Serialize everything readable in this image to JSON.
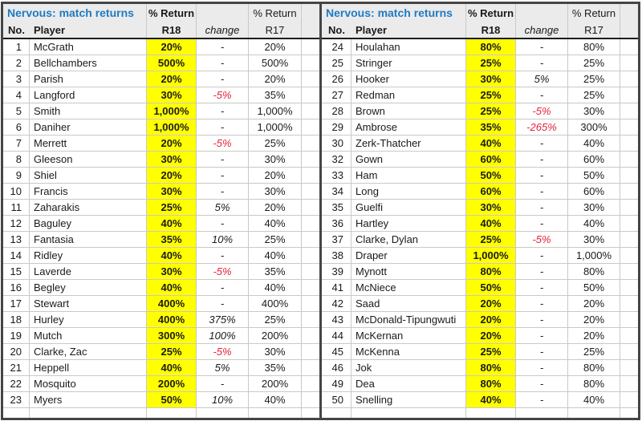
{
  "title": "Nervous: match returns",
  "colors": {
    "title_blue": "#1e7bc3",
    "highlight_yellow": "#ffff00",
    "negative_red": "#e3233c"
  },
  "header": {
    "pct_return": "% Return",
    "col_no": "No.",
    "col_player": "Player",
    "col_r18": "R18",
    "col_change": "change",
    "col_r17": "R17"
  },
  "left_rows": [
    {
      "no": "1",
      "player": "McGrath",
      "r18": "20%",
      "change": "-",
      "r17": "20%"
    },
    {
      "no": "2",
      "player": "Bellchambers",
      "r18": "500%",
      "change": "-",
      "r17": "500%"
    },
    {
      "no": "3",
      "player": "Parish",
      "r18": "20%",
      "change": "-",
      "r17": "20%"
    },
    {
      "no": "4",
      "player": "Langford",
      "r18": "30%",
      "change": "-5%",
      "r17": "35%"
    },
    {
      "no": "5",
      "player": "Smith",
      "r18": "1,000%",
      "change": "-",
      "r17": "1,000%"
    },
    {
      "no": "6",
      "player": "Daniher",
      "r18": "1,000%",
      "change": "-",
      "r17": "1,000%"
    },
    {
      "no": "7",
      "player": "Merrett",
      "r18": "20%",
      "change": "-5%",
      "r17": "25%"
    },
    {
      "no": "8",
      "player": "Gleeson",
      "r18": "30%",
      "change": "-",
      "r17": "30%"
    },
    {
      "no": "9",
      "player": "Shiel",
      "r18": "20%",
      "change": "-",
      "r17": "20%"
    },
    {
      "no": "10",
      "player": "Francis",
      "r18": "30%",
      "change": "-",
      "r17": "30%"
    },
    {
      "no": "11",
      "player": "Zaharakis",
      "r18": "25%",
      "change": "5%",
      "r17": "20%"
    },
    {
      "no": "12",
      "player": "Baguley",
      "r18": "40%",
      "change": "-",
      "r17": "40%"
    },
    {
      "no": "13",
      "player": "Fantasia",
      "r18": "35%",
      "change": "10%",
      "r17": "25%"
    },
    {
      "no": "14",
      "player": "Ridley",
      "r18": "40%",
      "change": "-",
      "r17": "40%"
    },
    {
      "no": "15",
      "player": "Laverde",
      "r18": "30%",
      "change": "-5%",
      "r17": "35%"
    },
    {
      "no": "16",
      "player": "Begley",
      "r18": "40%",
      "change": "-",
      "r17": "40%"
    },
    {
      "no": "17",
      "player": "Stewart",
      "r18": "400%",
      "change": "-",
      "r17": "400%"
    },
    {
      "no": "18",
      "player": "Hurley",
      "r18": "400%",
      "change": "375%",
      "r17": "25%"
    },
    {
      "no": "19",
      "player": "Mutch",
      "r18": "300%",
      "change": "100%",
      "r17": "200%"
    },
    {
      "no": "20",
      "player": "Clarke, Zac",
      "r18": "25%",
      "change": "-5%",
      "r17": "30%"
    },
    {
      "no": "21",
      "player": "Heppell",
      "r18": "40%",
      "change": "5%",
      "r17": "35%"
    },
    {
      "no": "22",
      "player": "Mosquito",
      "r18": "200%",
      "change": "-",
      "r17": "200%"
    },
    {
      "no": "23",
      "player": "Myers",
      "r18": "50%",
      "change": "10%",
      "r17": "40%"
    }
  ],
  "right_rows": [
    {
      "no": "24",
      "player": "Houlahan",
      "r18": "80%",
      "change": "-",
      "r17": "80%"
    },
    {
      "no": "25",
      "player": "Stringer",
      "r18": "25%",
      "change": "-",
      "r17": "25%"
    },
    {
      "no": "26",
      "player": "Hooker",
      "r18": "30%",
      "change": "5%",
      "r17": "25%"
    },
    {
      "no": "27",
      "player": "Redman",
      "r18": "25%",
      "change": "-",
      "r17": "25%"
    },
    {
      "no": "28",
      "player": "Brown",
      "r18": "25%",
      "change": "-5%",
      "r17": "30%"
    },
    {
      "no": "29",
      "player": "Ambrose",
      "r18": "35%",
      "change": "-265%",
      "r17": "300%"
    },
    {
      "no": "30",
      "player": "Zerk-Thatcher",
      "r18": "40%",
      "change": "-",
      "r17": "40%"
    },
    {
      "no": "32",
      "player": "Gown",
      "r18": "60%",
      "change": "-",
      "r17": "60%"
    },
    {
      "no": "33",
      "player": "Ham",
      "r18": "50%",
      "change": "-",
      "r17": "50%"
    },
    {
      "no": "34",
      "player": "Long",
      "r18": "60%",
      "change": "-",
      "r17": "60%"
    },
    {
      "no": "35",
      "player": "Guelfi",
      "r18": "30%",
      "change": "-",
      "r17": "30%"
    },
    {
      "no": "36",
      "player": "Hartley",
      "r18": "40%",
      "change": "-",
      "r17": "40%"
    },
    {
      "no": "37",
      "player": "Clarke, Dylan",
      "r18": "25%",
      "change": "-5%",
      "r17": "30%"
    },
    {
      "no": "38",
      "player": "Draper",
      "r18": "1,000%",
      "change": "-",
      "r17": "1,000%"
    },
    {
      "no": "39",
      "player": "Mynott",
      "r18": "80%",
      "change": "-",
      "r17": "80%"
    },
    {
      "no": "41",
      "player": "McNiece",
      "r18": "50%",
      "change": "-",
      "r17": "50%"
    },
    {
      "no": "42",
      "player": "Saad",
      "r18": "20%",
      "change": "-",
      "r17": "20%"
    },
    {
      "no": "43",
      "player": "McDonald-Tipungwuti",
      "r18": "20%",
      "change": "-",
      "r17": "20%"
    },
    {
      "no": "44",
      "player": "McKernan",
      "r18": "20%",
      "change": "-",
      "r17": "20%"
    },
    {
      "no": "45",
      "player": "McKenna",
      "r18": "25%",
      "change": "-",
      "r17": "25%"
    },
    {
      "no": "46",
      "player": "Jok",
      "r18": "80%",
      "change": "-",
      "r17": "80%"
    },
    {
      "no": "49",
      "player": "Dea",
      "r18": "80%",
      "change": "-",
      "r17": "80%"
    },
    {
      "no": "50",
      "player": "Snelling",
      "r18": "40%",
      "change": "-",
      "r17": "40%"
    }
  ]
}
